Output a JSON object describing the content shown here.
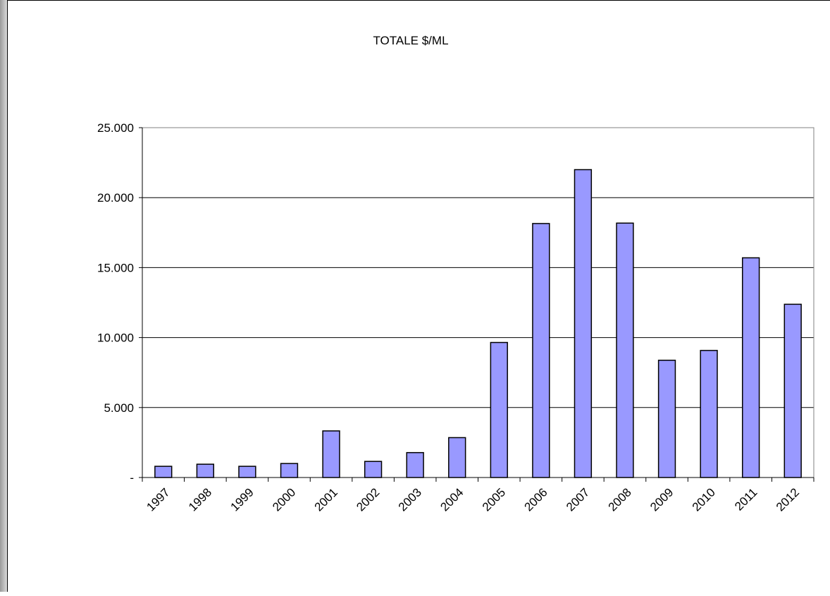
{
  "chart_data": {
    "type": "bar",
    "title": "TOTALE $/ML",
    "xlabel": "",
    "ylabel": "",
    "categories": [
      "1997",
      "1998",
      "1999",
      "2000",
      "2001",
      "2002",
      "2003",
      "2004",
      "2005",
      "2006",
      "2007",
      "2008",
      "2009",
      "2010",
      "2011",
      "2012"
    ],
    "values": [
      800,
      950,
      800,
      1000,
      3330,
      1150,
      1780,
      2850,
      9650,
      18150,
      22000,
      18180,
      8380,
      9080,
      15700,
      12380
    ],
    "ylim": [
      0,
      25000
    ],
    "yticks": [
      0,
      5000,
      10000,
      15000,
      20000,
      25000
    ],
    "ytick_labels": [
      "-",
      "5.000",
      "10.000",
      "15.000",
      "20.000",
      "25.000"
    ],
    "grid": true,
    "legend": "none",
    "bar_color": "#9999ff",
    "bar_edge_color": "#000000"
  }
}
